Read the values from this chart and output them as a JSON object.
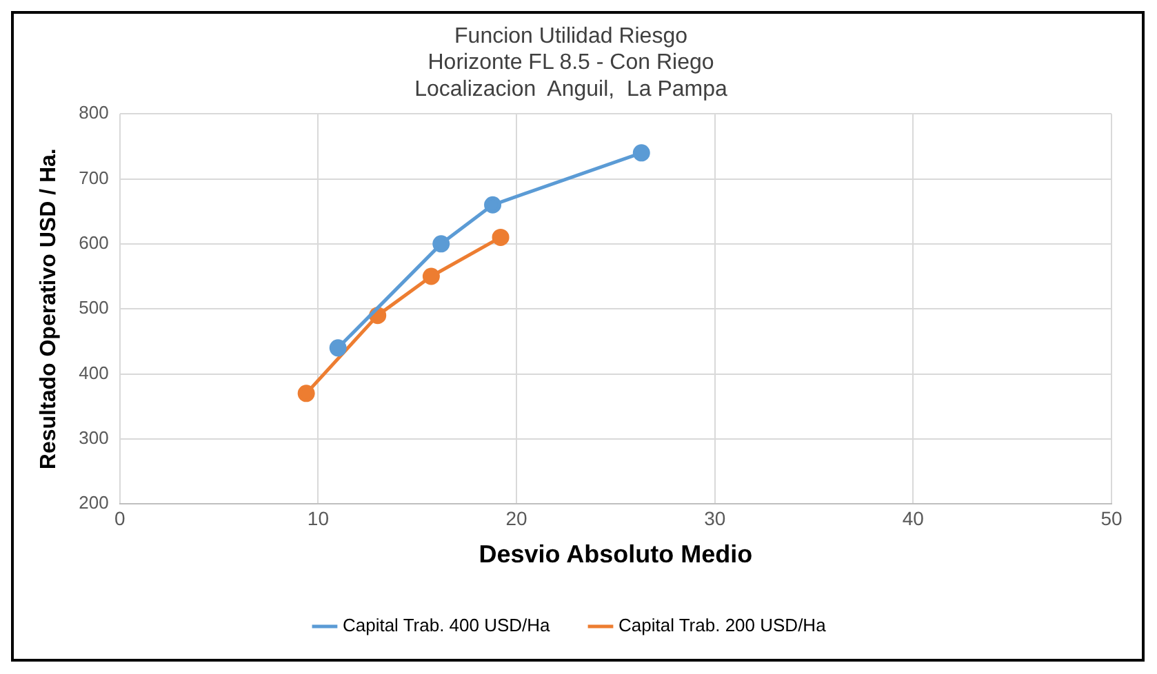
{
  "chart_data": {
    "type": "line",
    "title": [
      "Funcion Utilidad Riesgo",
      "Horizonte FL 8.5 - Con Riego",
      "Localizacion  Anguil,  La Pampa"
    ],
    "xlabel": "Desvio Absoluto Medio",
    "ylabel": "Resultado Operativo USD / Ha.",
    "xlim": [
      0,
      50
    ],
    "xticks": [
      0,
      10,
      20,
      30,
      40,
      50
    ],
    "ylim": [
      200,
      800
    ],
    "yticks": [
      200,
      300,
      400,
      500,
      600,
      700,
      800
    ],
    "grid": true,
    "legend": "bottom",
    "marker": "circle",
    "line_style": "solid",
    "series": [
      {
        "name": "Capital Trab. 400 USD/Ha",
        "color": "#5b9bd5",
        "x": [
          11.0,
          16.2,
          18.8,
          26.3
        ],
        "values": [
          440,
          600,
          660,
          740
        ]
      },
      {
        "name": "Capital Trab. 200 USD/Ha",
        "color": "#ed7d31",
        "x": [
          9.4,
          13.0,
          15.7,
          19.2
        ],
        "values": [
          370,
          490,
          550,
          610
        ]
      }
    ]
  }
}
